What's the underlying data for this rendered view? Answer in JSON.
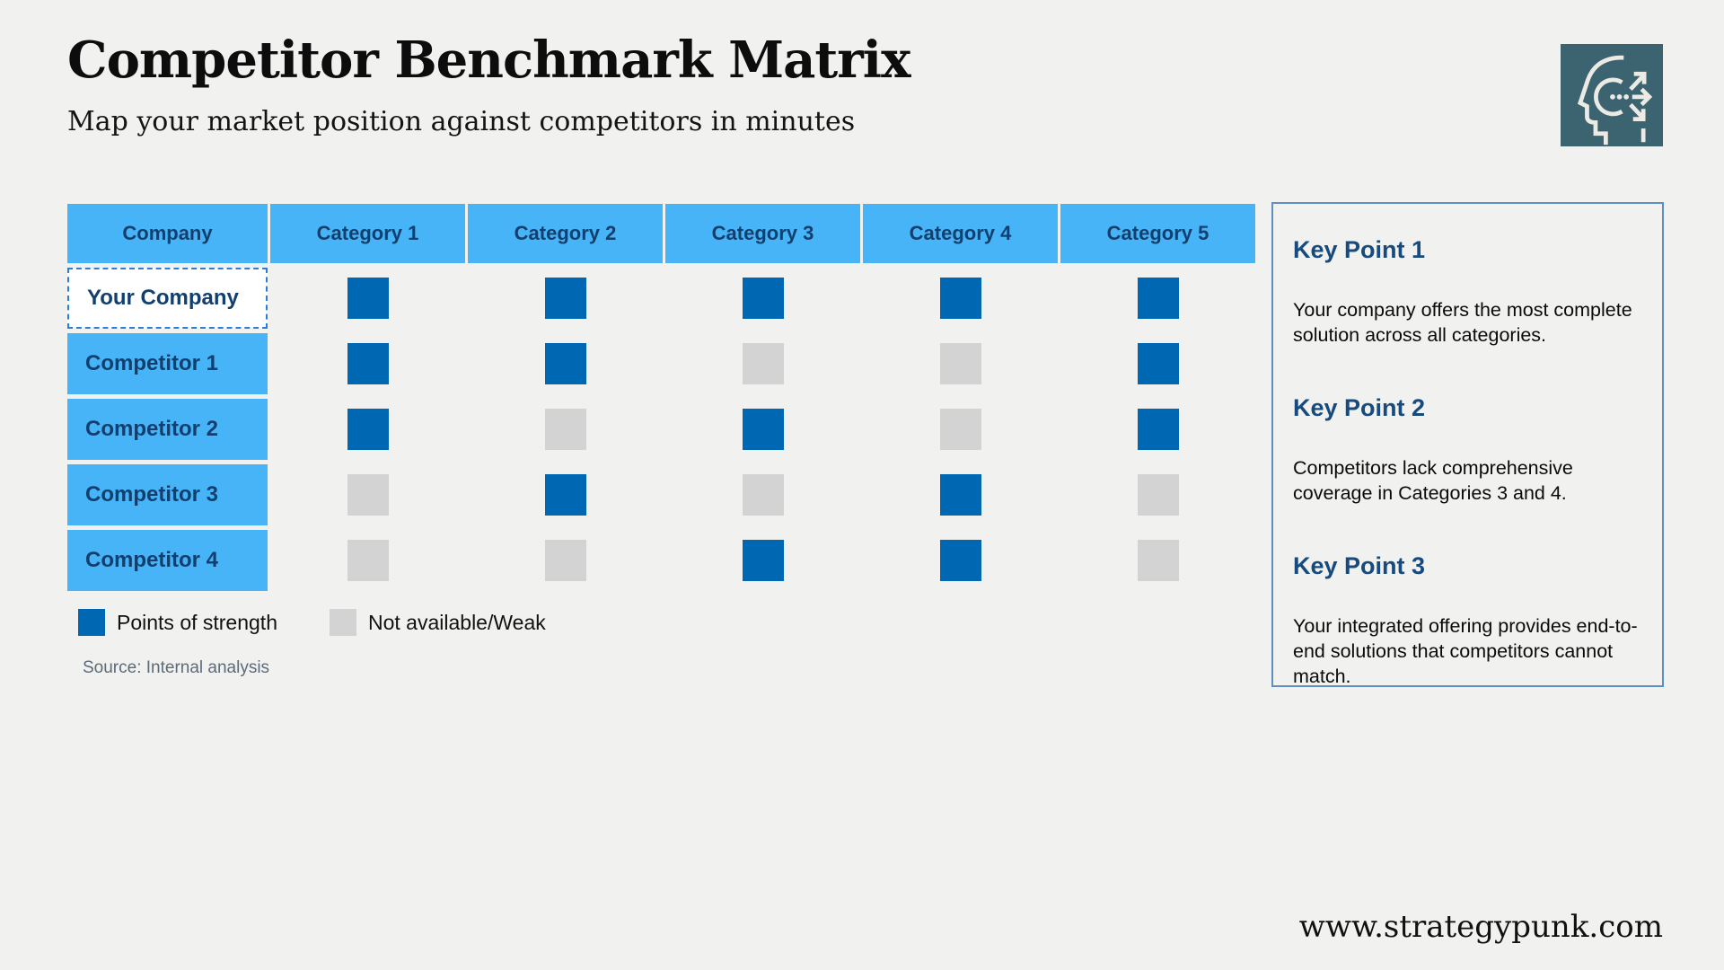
{
  "page": {
    "title": "Competitor Benchmark Matrix",
    "subtitle": "Map your market position against competitors in minutes",
    "footer_url": "www.strategypunk.com",
    "source_note": "Source: Internal analysis"
  },
  "logo": {
    "name": "strategypunk-head-arrows-logo",
    "background": "#3c6470"
  },
  "colors": {
    "page_background": "#f1f1ef",
    "header_light_blue": "#47b4f8",
    "strength_blue": "#0068b2",
    "weak_gray": "#d2d3d2",
    "navy_text": "#123f6d",
    "key_point_navy": "#174a7d",
    "panel_border": "#5d8fc6",
    "selected_dashed_border": "#2a7dd8"
  },
  "table": {
    "columns": [
      "Company",
      "Category 1",
      "Category 2",
      "Category 3",
      "Category 4",
      "Category 5"
    ],
    "rows": [
      {
        "label": "Your Company",
        "highlight": true,
        "cells": [
          "strong",
          "strong",
          "strong",
          "strong",
          "strong"
        ]
      },
      {
        "label": "Competitor 1",
        "highlight": false,
        "cells": [
          "strong",
          "strong",
          "weak",
          "weak",
          "strong"
        ]
      },
      {
        "label": "Competitor 2",
        "highlight": false,
        "cells": [
          "strong",
          "weak",
          "strong",
          "weak",
          "strong"
        ]
      },
      {
        "label": "Competitor 3",
        "highlight": false,
        "cells": [
          "weak",
          "strong",
          "weak",
          "strong",
          "weak"
        ]
      },
      {
        "label": "Competitor 4",
        "highlight": false,
        "cells": [
          "weak",
          "weak",
          "strong",
          "strong",
          "weak"
        ]
      }
    ]
  },
  "legend": {
    "strong_label": "Points of strength",
    "weak_label": "Not available/Weak"
  },
  "key_points": [
    {
      "heading": "Key Point 1",
      "text": "Your company offers the most complete solution across all categories."
    },
    {
      "heading": "Key Point 2",
      "text": "Competitors lack comprehensive coverage in Categories 3 and 4."
    },
    {
      "heading": "Key Point 3",
      "text": "Your integrated offering provides end-to-end solutions that competitors cannot match."
    }
  ],
  "chart_data": {
    "type": "heatmap",
    "title": "Competitor Benchmark Matrix",
    "categories": [
      "Category 1",
      "Category 2",
      "Category 3",
      "Category 4",
      "Category 5"
    ],
    "series": [
      {
        "name": "Your Company",
        "values": [
          1,
          1,
          1,
          1,
          1
        ]
      },
      {
        "name": "Competitor 1",
        "values": [
          1,
          1,
          0,
          0,
          1
        ]
      },
      {
        "name": "Competitor 2",
        "values": [
          1,
          0,
          1,
          0,
          1
        ]
      },
      {
        "name": "Competitor 3",
        "values": [
          0,
          1,
          0,
          1,
          0
        ]
      },
      {
        "name": "Competitor 4",
        "values": [
          0,
          0,
          1,
          1,
          0
        ]
      }
    ],
    "value_legend": {
      "1": "Points of strength",
      "0": "Not available/Weak"
    }
  }
}
